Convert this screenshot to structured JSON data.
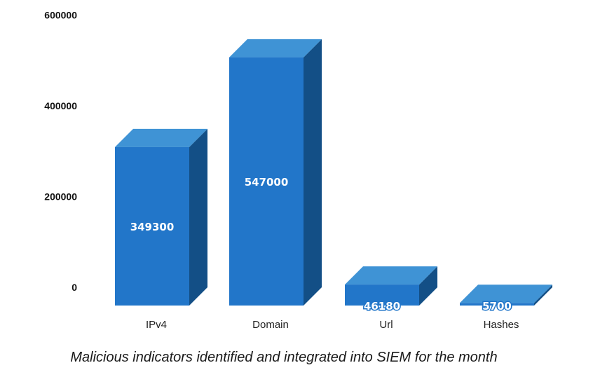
{
  "chart_data": {
    "type": "bar",
    "style": "3d",
    "categories": [
      "IPv4",
      "Domain",
      "Url",
      "Hashes"
    ],
    "values": [
      349300,
      547000,
      46180,
      5700
    ],
    "data_labels": [
      "349300",
      "547000",
      "46180",
      "5700"
    ],
    "yticks": [
      "0",
      "200000",
      "400000",
      "600000"
    ],
    "ylim": [
      0,
      600000
    ],
    "title": "Malicious indicators identified and integrated into SIEM for the month",
    "xlabel": "",
    "ylabel": "",
    "grid": false,
    "colors": {
      "front": "#2276c9",
      "top": "#3f93d5",
      "side": "#134f86"
    }
  }
}
